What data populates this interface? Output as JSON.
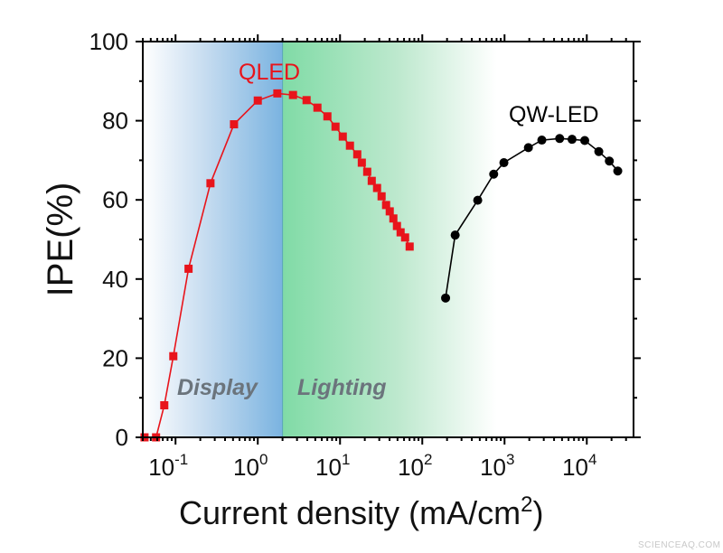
{
  "chart_data": {
    "type": "line",
    "title": "",
    "xlabel": "Current density (mA/cm",
    "xlabel_superscript": "2",
    "xlabel_suffix": ")",
    "ylabel": "IPE(%)",
    "x_scale": "log",
    "xlim": [
      0.04,
      37000
    ],
    "ylim": [
      0,
      100
    ],
    "grid": false,
    "x_ticks": [
      0.1,
      1,
      10,
      100,
      1000,
      10000
    ],
    "x_tick_labels": [
      {
        "base": "10",
        "exp": "-1"
      },
      {
        "base": "10",
        "exp": "0"
      },
      {
        "base": "10",
        "exp": "1"
      },
      {
        "base": "10",
        "exp": "2"
      },
      {
        "base": "10",
        "exp": "3"
      },
      {
        "base": "10",
        "exp": "4"
      }
    ],
    "y_ticks": [
      0,
      20,
      40,
      60,
      80,
      100
    ],
    "y_tick_labels": [
      "0",
      "20",
      "40",
      "60",
      "80",
      "100"
    ],
    "regions": [
      {
        "label": "Display",
        "from": 0.04,
        "to": 2.0,
        "color": "#7ab3e0"
      },
      {
        "label": "Lighting",
        "from": 2.0,
        "to": 800,
        "color": "#80dba6"
      }
    ],
    "series": [
      {
        "name": "QLED",
        "color": "#e8141b",
        "marker": "square",
        "x": [
          0.042,
          0.058,
          0.073,
          0.094,
          0.144,
          0.266,
          0.514,
          1.0,
          1.73,
          2.68,
          3.92,
          5.31,
          7.02,
          8.81,
          10.8,
          13.2,
          16.2,
          18.4,
          21.4,
          24.3,
          28.2,
          32.0,
          36.3,
          40.2,
          44.5,
          49.2,
          54.5,
          61.8,
          70.2
        ],
        "y": [
          0,
          0,
          8.1,
          20.5,
          42.6,
          64.2,
          79.1,
          85.1,
          86.9,
          86.5,
          85.2,
          83.3,
          81.1,
          78.5,
          76.0,
          73.7,
          71.5,
          69.4,
          67.1,
          64.8,
          63.0,
          60.9,
          58.7,
          57.1,
          55.3,
          53.4,
          51.8,
          50.5,
          48.2
        ]
      },
      {
        "name": "QW-LED",
        "color": "#000000",
        "marker": "circle",
        "x": [
          192,
          251,
          472,
          738,
          982,
          1950,
          2840,
          4680,
          6620,
          9440,
          14000,
          18800,
          23800
        ],
        "y": [
          35.2,
          51.1,
          59.9,
          66.5,
          69.4,
          73.2,
          75.1,
          75.5,
          75.3,
          75.0,
          72.2,
          69.8,
          67.3
        ]
      }
    ]
  },
  "watermark": "SCIENCEAQ.COM"
}
